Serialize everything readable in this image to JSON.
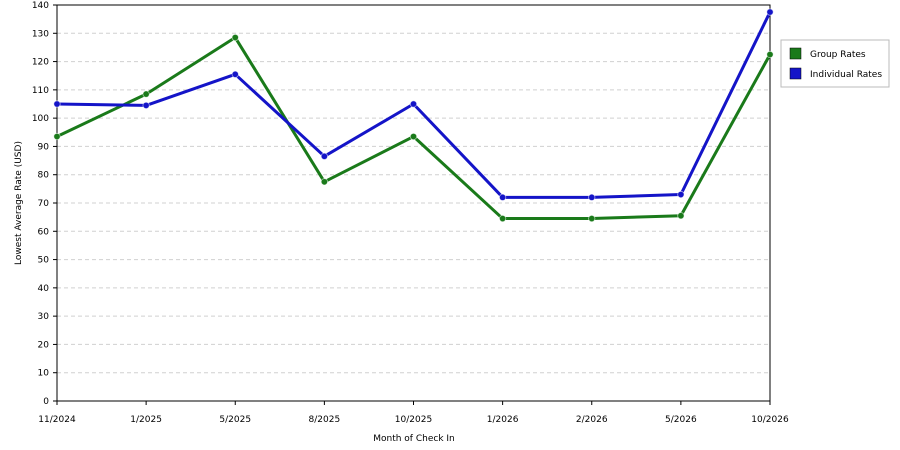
{
  "chart_data": {
    "type": "line",
    "title": "",
    "xlabel": "Month of Check In",
    "ylabel": "Lowest Average Rate (USD)",
    "categories": [
      "11/2024",
      "1/2025",
      "5/2025",
      "8/2025",
      "10/2025",
      "1/2026",
      "2/2026",
      "5/2026",
      "10/2026"
    ],
    "ylim": [
      0,
      140
    ],
    "yticks": [
      0,
      10,
      20,
      30,
      40,
      50,
      60,
      70,
      80,
      90,
      100,
      110,
      120,
      130,
      140
    ],
    "grid": true,
    "legend_position": "right",
    "series": [
      {
        "name": "Group Rates",
        "color": "#1a7a1a",
        "values": [
          93.5,
          108.5,
          128.5,
          77.5,
          93.5,
          64.5,
          64.5,
          65.5,
          122.5
        ]
      },
      {
        "name": "Individual Rates",
        "color": "#1414c8",
        "values": [
          105,
          104.5,
          115.5,
          86.5,
          105,
          72,
          72,
          73,
          137.5
        ]
      }
    ]
  }
}
